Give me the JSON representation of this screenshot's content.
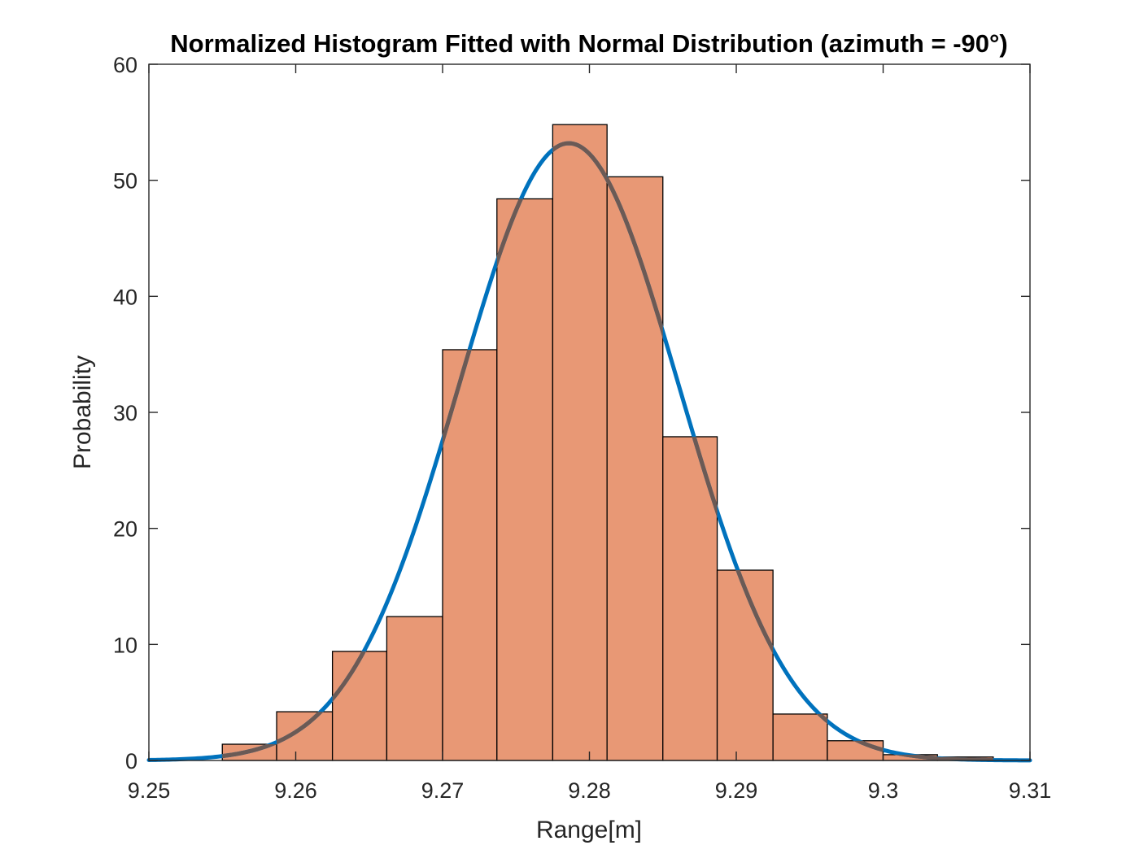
{
  "chart_data": {
    "type": "bar",
    "title": "Normalized Histogram Fitted with Normal Distribution (azimuth = -90°)",
    "xlabel": "Range[m]",
    "ylabel": "Probability",
    "xlim": [
      9.25,
      9.31
    ],
    "ylim": [
      0,
      60
    ],
    "x_ticks": [
      9.25,
      9.26,
      9.27,
      9.28,
      9.29,
      9.3,
      9.31
    ],
    "x_tick_labels": [
      "9.25",
      "9.26",
      "9.27",
      "9.28",
      "9.29",
      "9.3",
      "9.31"
    ],
    "y_ticks": [
      0,
      10,
      20,
      30,
      40,
      50,
      60
    ],
    "y_tick_labels": [
      "0",
      "10",
      "20",
      "30",
      "40",
      "50",
      "60"
    ],
    "grid": false,
    "bin_edges": [
      9.255,
      9.2587,
      9.2625,
      9.2662,
      9.27,
      9.2737,
      9.2775,
      9.2812,
      9.285,
      9.2887,
      9.2925,
      9.2962,
      9.3,
      9.3037,
      9.3075
    ],
    "values": [
      1.4,
      4.2,
      9.4,
      12.4,
      35.4,
      48.4,
      54.8,
      50.3,
      27.9,
      16.4,
      4.0,
      1.7,
      0.5,
      0.3
    ],
    "fit": {
      "distribution": "normal",
      "mean": 9.2786,
      "sigma": 0.0075
    },
    "colors": {
      "bar_fill": "#e89875",
      "bar_edge": "#000000",
      "fit_line": "#0072bd",
      "axis": "#262626"
    }
  }
}
